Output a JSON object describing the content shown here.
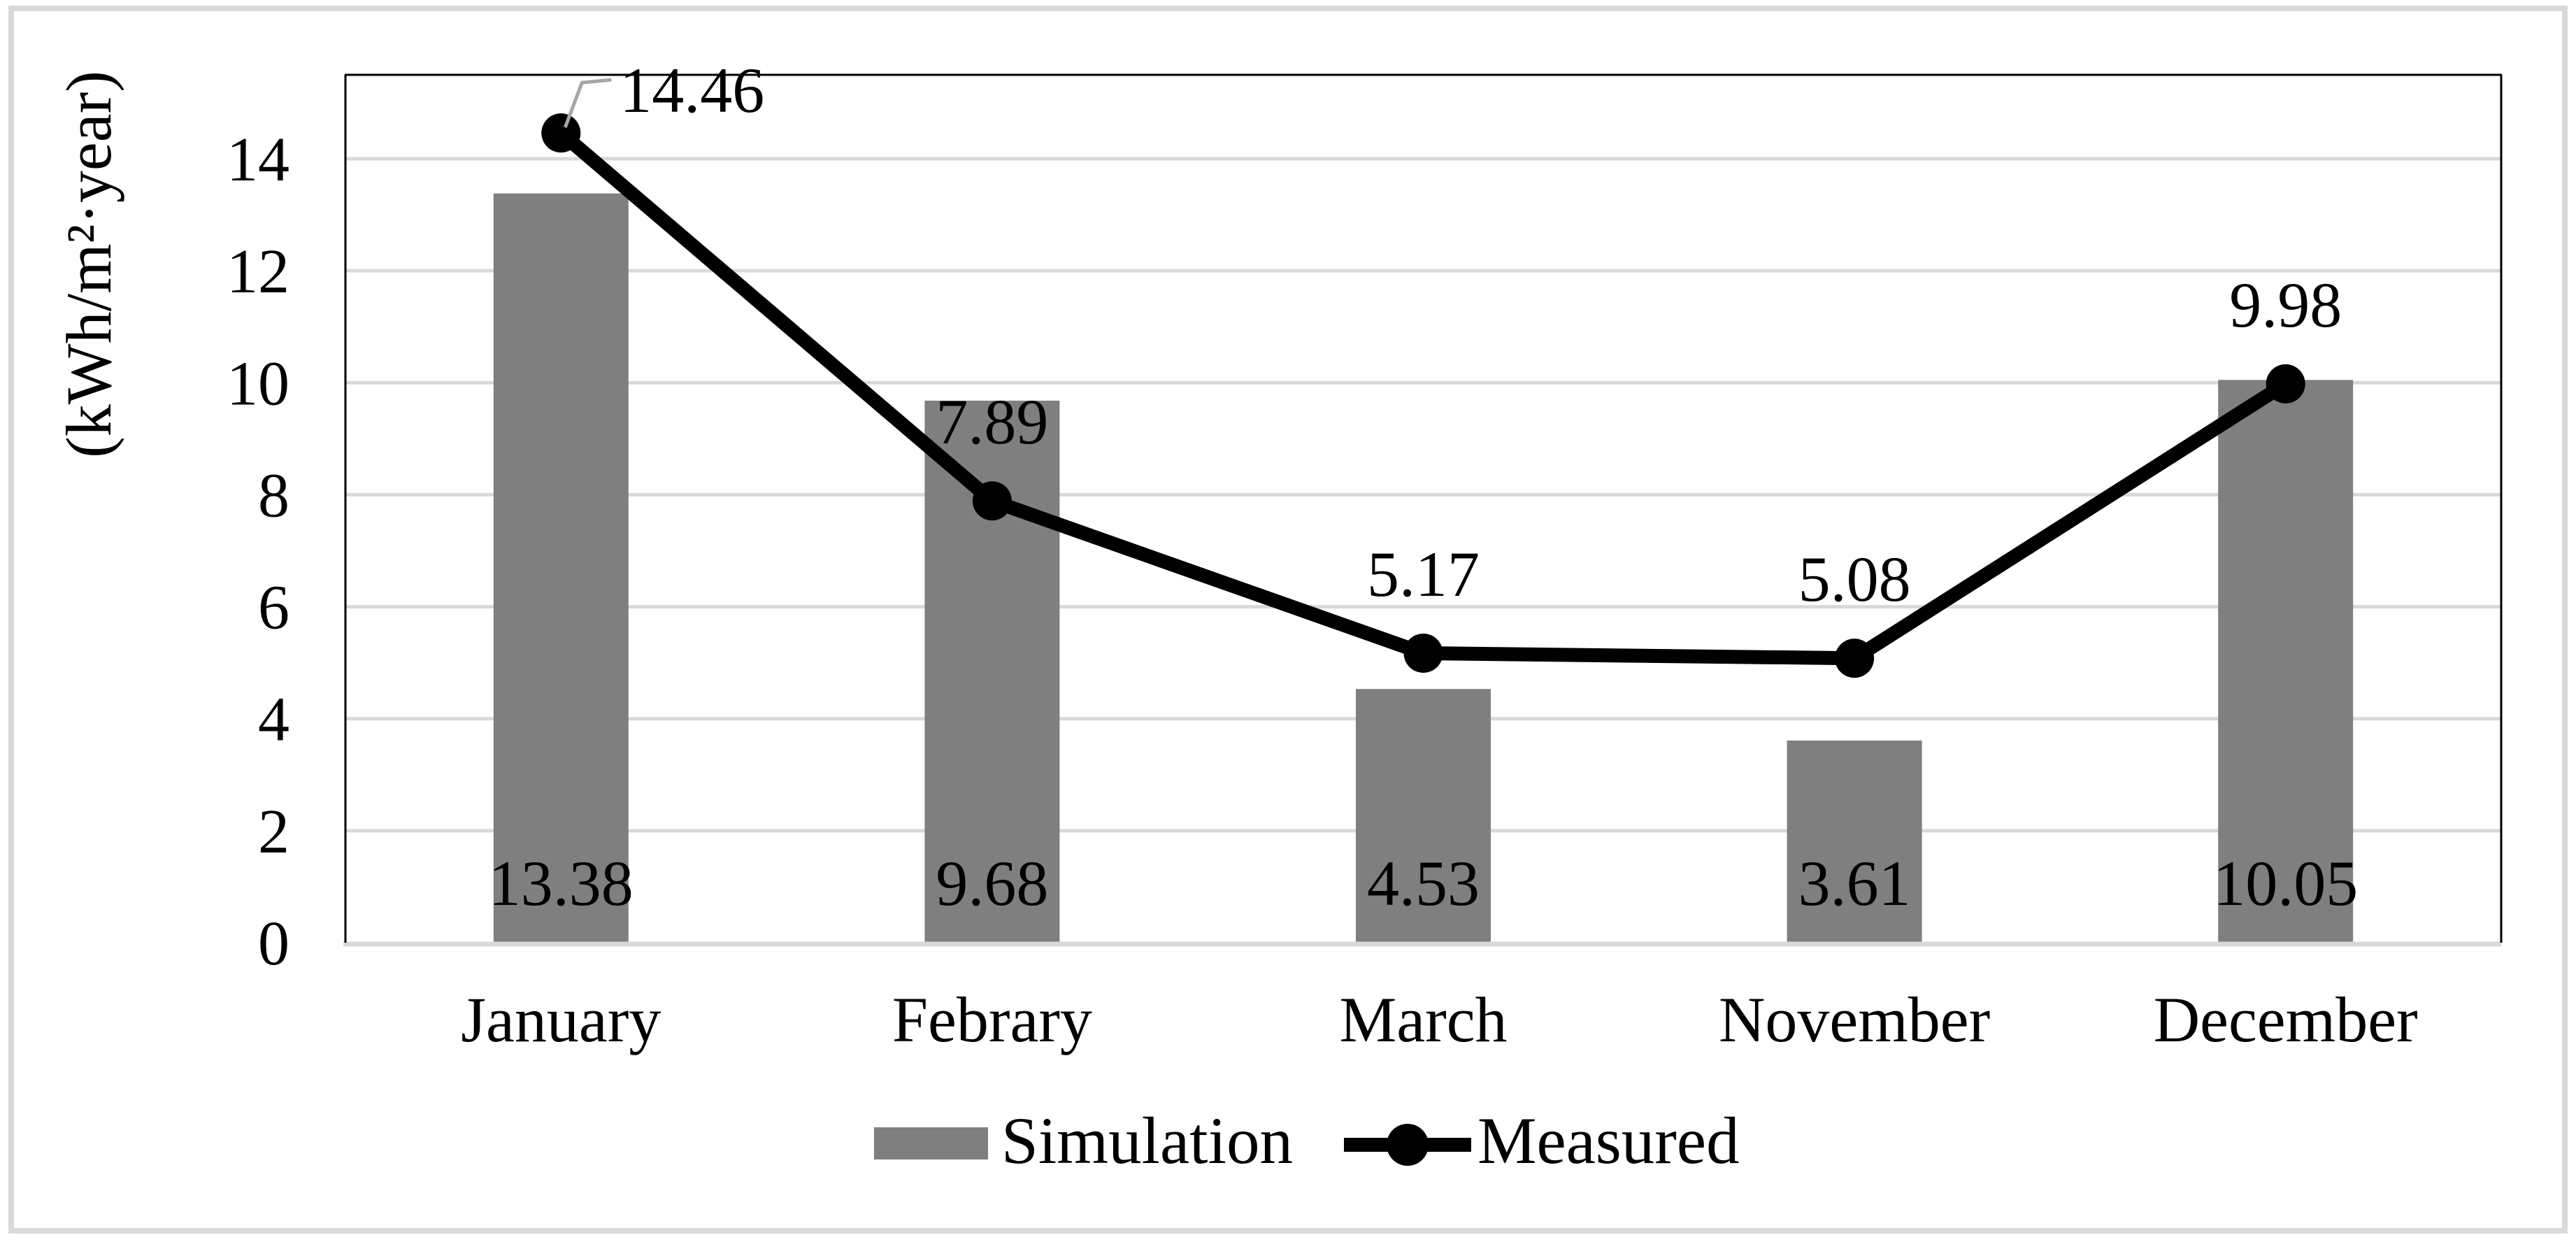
{
  "figure": {
    "background": "#ffffff",
    "border_color": "#d9d9d9"
  },
  "chart_data": {
    "type": "combo",
    "categories": [
      "January",
      "Febrary",
      "March",
      "November",
      "December"
    ],
    "series": [
      {
        "name": "Simulation",
        "type": "bar",
        "color": "#7f7f7f",
        "values": [
          13.38,
          9.68,
          4.53,
          3.61,
          10.05
        ],
        "label_position": "inside-base"
      },
      {
        "name": "Measured",
        "type": "line",
        "color": "#000000",
        "marker": "circle",
        "values": [
          14.46,
          7.89,
          5.17,
          5.08,
          9.98
        ],
        "label_position": "above",
        "first_label_leader": true
      }
    ],
    "value_labels": {
      "simulation": [
        "13.38",
        "9.68",
        "4.53",
        "3.61",
        "10.05"
      ],
      "measured": [
        "14.46",
        "7.89",
        "5.17",
        "5.08",
        "9.98"
      ]
    },
    "xlabel": "",
    "ylabel": "(kWh/m²·year)",
    "ytick_labels": [
      "0",
      "2",
      "4",
      "6",
      "8",
      "10",
      "12",
      "14"
    ],
    "yticks": [
      0,
      2,
      4,
      6,
      8,
      10,
      12,
      14
    ],
    "ylim": [
      0,
      15.5
    ],
    "grid": "horizontal-major",
    "gridline_color": "#d9d9d9",
    "plot_border_color": "#000000",
    "baseline_color": "#d9d9d9",
    "leader_line_color": "#a6a6a6",
    "legend_position": "bottom",
    "legend": [
      {
        "label": "Simulation",
        "swatch": "bar"
      },
      {
        "label": "Measured",
        "swatch": "line-dot"
      }
    ]
  }
}
